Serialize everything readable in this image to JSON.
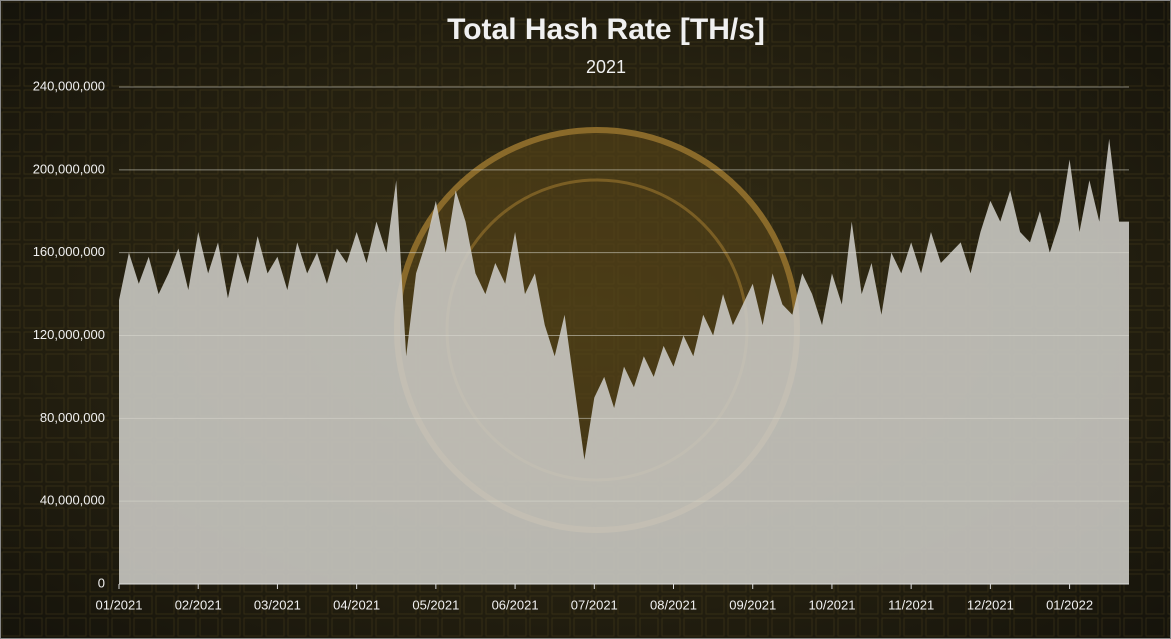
{
  "chart_data": {
    "type": "area",
    "title": "Total Hash Rate [TH/s]",
    "subtitle": "2021",
    "categories": [
      "01/2021",
      null,
      null,
      null,
      null,
      null,
      null,
      null,
      "02/2021",
      null,
      null,
      null,
      null,
      null,
      null,
      null,
      "03/2021",
      null,
      null,
      null,
      null,
      null,
      null,
      null,
      "04/2021",
      null,
      null,
      null,
      null,
      null,
      null,
      null,
      "05/2021",
      null,
      null,
      null,
      null,
      null,
      null,
      null,
      "06/2021",
      null,
      null,
      null,
      null,
      null,
      null,
      null,
      "07/2021",
      null,
      null,
      null,
      null,
      null,
      null,
      null,
      "08/2021",
      null,
      null,
      null,
      null,
      null,
      null,
      null,
      "09/2021",
      null,
      null,
      null,
      null,
      null,
      null,
      null,
      "10/2021",
      null,
      null,
      null,
      null,
      null,
      null,
      null,
      "11/2021",
      null,
      null,
      null,
      null,
      null,
      null,
      null,
      "12/2021",
      null,
      null,
      null,
      null,
      null,
      null,
      null,
      "01/2022",
      null,
      null,
      null,
      null,
      null,
      null
    ],
    "values": [
      137000000,
      160000000,
      145000000,
      158000000,
      140000000,
      150000000,
      162000000,
      142000000,
      170000000,
      150000000,
      165000000,
      138000000,
      160000000,
      145000000,
      168000000,
      150000000,
      158000000,
      142000000,
      165000000,
      150000000,
      160000000,
      145000000,
      162000000,
      155000000,
      170000000,
      155000000,
      175000000,
      160000000,
      195000000,
      110000000,
      150000000,
      165000000,
      185000000,
      160000000,
      190000000,
      175000000,
      150000000,
      140000000,
      155000000,
      145000000,
      170000000,
      140000000,
      150000000,
      125000000,
      110000000,
      130000000,
      95000000,
      60000000,
      90000000,
      100000000,
      85000000,
      105000000,
      95000000,
      110000000,
      100000000,
      115000000,
      105000000,
      120000000,
      110000000,
      130000000,
      120000000,
      140000000,
      125000000,
      135000000,
      145000000,
      125000000,
      150000000,
      135000000,
      130000000,
      150000000,
      140000000,
      125000000,
      150000000,
      135000000,
      175000000,
      140000000,
      155000000,
      130000000,
      160000000,
      150000000,
      165000000,
      150000000,
      170000000,
      155000000,
      160000000,
      165000000,
      150000000,
      170000000,
      185000000,
      175000000,
      190000000,
      170000000,
      165000000,
      180000000,
      160000000,
      175000000,
      205000000,
      170000000,
      195000000,
      175000000,
      215000000,
      175000000,
      175000000
    ],
    "color": "#c9c8c2",
    "ylim": [
      0,
      240000000
    ],
    "yticks": [
      0,
      {
        "value": 40000000,
        "label": "40,000,000"
      },
      {
        "value": 80000000,
        "label": "80,000,000"
      },
      {
        "value": 120000000,
        "label": "120,000,000"
      },
      {
        "value": 160000000,
        "label": "160,000,000"
      },
      {
        "value": 200000000,
        "label": "200,000,000"
      },
      {
        "value": 240000000,
        "label": "240,000,000"
      }
    ],
    "grid": true
  }
}
